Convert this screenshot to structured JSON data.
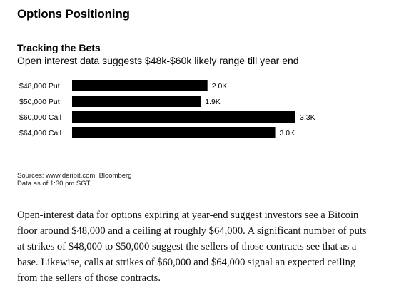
{
  "heading": "Options Positioning",
  "chart_data": {
    "type": "bar",
    "orientation": "horizontal",
    "title": "Tracking the Bets",
    "subtitle": "Open interest data suggests $48k-$60k likely range till year end",
    "categories": [
      "$48,000 Put",
      "$50,000 Put",
      "$60,000 Call",
      "$64,000 Call"
    ],
    "values": [
      2.0,
      1.9,
      3.3,
      3.0
    ],
    "value_labels": [
      "2.0K",
      "1.9K",
      "3.3K",
      "3.0K"
    ],
    "unit": "K",
    "xlim": [
      0,
      3.3
    ],
    "bar_color": "#000000",
    "grid": false,
    "xlabel": "",
    "ylabel": ""
  },
  "sources": {
    "line1": "Sources: www.deribit.com, Bloomberg",
    "line2": "Data as of 1:30 pm SGT"
  },
  "article": {
    "paragraph": "Open-interest data for options expiring at year-end suggest investors see a Bitcoin floor around $48,000 and a ceiling at roughly $64,000. A significant number of puts at strikes of $48,000 to $50,000 suggest the sellers of those contracts see that as a base. Likewise, calls at strikes of $60,000 and $64,000 signal an expected ceiling from the sellers of those contracts."
  }
}
